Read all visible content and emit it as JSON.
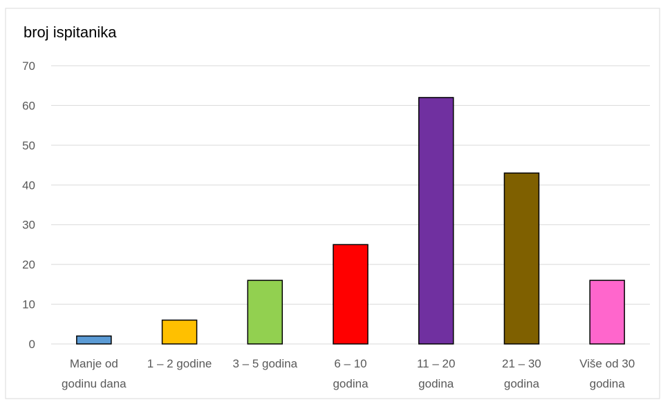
{
  "chart_data": {
    "type": "bar",
    "ylabel": "broj ispitanika",
    "categories": [
      [
        "Manje od",
        "godinu dana"
      ],
      [
        "1 – 2 godine"
      ],
      [
        "3 – 5 godina"
      ],
      [
        "6 – 10",
        "godina"
      ],
      [
        "11 – 20",
        "godina"
      ],
      [
        "21 – 30",
        "godina"
      ],
      [
        "Više od 30",
        "godina"
      ]
    ],
    "values": [
      2,
      6,
      16,
      25,
      62,
      43,
      16
    ],
    "bar_colors": [
      "#5b9bd5",
      "#ffc000",
      "#92d050",
      "#ff0000",
      "#7030a0",
      "#7f6000",
      "#ff66cc"
    ],
    "ylim": [
      0,
      70
    ],
    "yticks": [
      0,
      10,
      20,
      30,
      40,
      50,
      60,
      70
    ],
    "grid": true,
    "legend": "none"
  }
}
